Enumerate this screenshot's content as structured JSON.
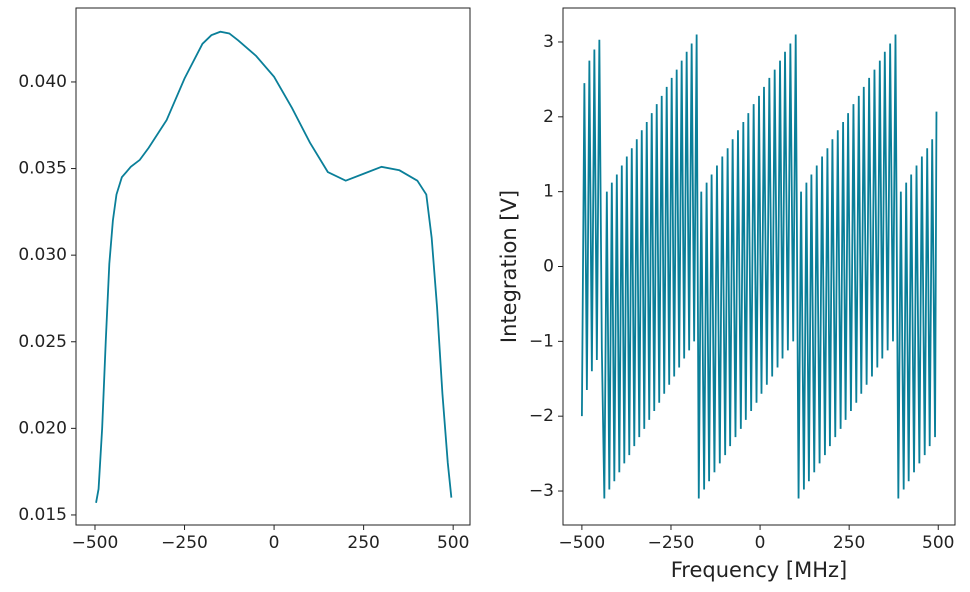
{
  "chart_data": [
    {
      "type": "line",
      "x": [
        -497,
        -490,
        -480,
        -470,
        -460,
        -450,
        -440,
        -425,
        -400,
        -375,
        -350,
        -300,
        -250,
        -200,
        -175,
        -150,
        -125,
        -100,
        -50,
        0,
        50,
        100,
        150,
        200,
        250,
        300,
        350,
        400,
        425,
        440,
        455,
        470,
        485,
        495
      ],
      "series": [
        {
          "color": "#0a7f99",
          "values": [
            0.0157,
            0.0165,
            0.02,
            0.025,
            0.0295,
            0.032,
            0.0335,
            0.0345,
            0.0351,
            0.0355,
            0.0362,
            0.0378,
            0.0402,
            0.0422,
            0.0427,
            0.0429,
            0.0428,
            0.0424,
            0.0415,
            0.0403,
            0.0385,
            0.0365,
            0.0348,
            0.0343,
            0.0347,
            0.0351,
            0.0349,
            0.0343,
            0.0335,
            0.031,
            0.027,
            0.022,
            0.018,
            0.016
          ]
        }
      ],
      "xlim": [
        -553,
        547
      ],
      "ylim": [
        0.01442,
        0.04427
      ],
      "xticks": [
        {
          "value": -500,
          "label": "−500"
        },
        {
          "value": -250,
          "label": "−250"
        },
        0,
        250,
        500
      ],
      "yticks": [
        {
          "value": 0.015,
          "label": "0.015"
        },
        {
          "value": 0.02,
          "label": "0.020"
        },
        {
          "value": 0.025,
          "label": "0.025"
        },
        {
          "value": 0.03,
          "label": "0.030"
        },
        {
          "value": 0.035,
          "label": "0.035"
        },
        {
          "value": 0.04,
          "label": "0.040"
        }
      ]
    },
    {
      "type": "line",
      "xlabel": "Frequency [MHz]",
      "ylabel": "Integration [V]",
      "x": [
        -500,
        -493,
        -486,
        -479,
        -472,
        -465,
        -458,
        -451,
        -444,
        -437,
        -430,
        -423,
        -416,
        -409,
        -402,
        -395,
        -388,
        -381,
        -374,
        -367,
        -360,
        -353,
        -346,
        -339,
        -332,
        -325,
        -318,
        -311,
        -304,
        -297,
        -290,
        -283,
        -276,
        -269,
        -262,
        -255,
        -248,
        -241,
        -234,
        -227,
        -220,
        -213,
        -206,
        -199,
        -192,
        -185,
        -178,
        -172,
        -165,
        -157,
        -150,
        -143,
        -136,
        -128,
        -121,
        -113,
        -106,
        -98,
        -91,
        -84,
        -77,
        -69,
        -62,
        -54,
        -47,
        -40,
        -33,
        -25,
        -18,
        -10,
        -3,
        4,
        11,
        19,
        26,
        34,
        41,
        49,
        56,
        63,
        70,
        78,
        85,
        93,
        100,
        108,
        115,
        123,
        130,
        137,
        144,
        152,
        159,
        167,
        174,
        182,
        189,
        196,
        203,
        211,
        218,
        226,
        233,
        240,
        247,
        255,
        262,
        270,
        277,
        284,
        291,
        299,
        306,
        314,
        321,
        329,
        336,
        343,
        350,
        358,
        365,
        373,
        380,
        388,
        395,
        403,
        410,
        417,
        424,
        432,
        439,
        447,
        454,
        462,
        469,
        476,
        483,
        491,
        495
      ],
      "series": [
        {
          "color": "#0a7f99",
          "values": [
            -2.0,
            2.45,
            -1.65,
            2.75,
            -1.4,
            2.9,
            -1.25,
            3.03,
            -1.1,
            -3.1,
            1.0,
            -2.98,
            1.12,
            -2.87,
            1.23,
            -2.75,
            1.35,
            -2.63,
            1.47,
            -2.52,
            1.58,
            -2.4,
            1.7,
            -2.28,
            1.82,
            -2.17,
            1.93,
            -2.05,
            2.05,
            -1.93,
            2.17,
            -1.82,
            2.28,
            -1.7,
            2.4,
            -1.58,
            2.52,
            -1.47,
            2.63,
            -1.35,
            2.75,
            -1.23,
            2.87,
            -1.12,
            2.98,
            -1.0,
            3.1,
            -3.1,
            1.0,
            -2.98,
            1.12,
            -2.87,
            1.23,
            -2.75,
            1.35,
            -2.63,
            1.47,
            -2.52,
            1.58,
            -2.4,
            1.7,
            -2.28,
            1.82,
            -2.17,
            1.93,
            -2.05,
            2.05,
            -1.93,
            2.17,
            -1.82,
            2.28,
            -1.7,
            2.4,
            -1.58,
            2.52,
            -1.47,
            2.63,
            -1.35,
            2.75,
            -1.23,
            2.87,
            -1.12,
            2.98,
            -1.0,
            3.1,
            -3.1,
            1.0,
            -2.98,
            1.12,
            -2.87,
            1.23,
            -2.75,
            1.35,
            -2.63,
            1.47,
            -2.52,
            1.58,
            -2.4,
            1.7,
            -2.28,
            1.82,
            -2.17,
            1.93,
            -2.05,
            2.05,
            -1.93,
            2.17,
            -1.82,
            2.28,
            -1.7,
            2.4,
            -1.58,
            2.52,
            -1.47,
            2.63,
            -1.35,
            2.75,
            -1.23,
            2.87,
            -1.12,
            2.98,
            -1.0,
            3.1,
            -3.1,
            1.0,
            -2.98,
            1.12,
            -2.87,
            1.23,
            -2.75,
            1.35,
            -2.63,
            1.47,
            -2.52,
            1.58,
            -2.4,
            1.7,
            -2.28,
            2.07
          ]
        }
      ],
      "xlim": [
        -553,
        547
      ],
      "ylim": [
        -3.454,
        3.454
      ],
      "xticks": [
        {
          "value": -500,
          "label": "−500"
        },
        {
          "value": -250,
          "label": "−250"
        },
        0,
        250,
        500
      ],
      "yticks": [
        {
          "value": -3,
          "label": "−3"
        },
        {
          "value": -2,
          "label": "−2"
        },
        {
          "value": -1,
          "label": "−1"
        },
        0,
        1,
        2,
        3
      ]
    }
  ]
}
